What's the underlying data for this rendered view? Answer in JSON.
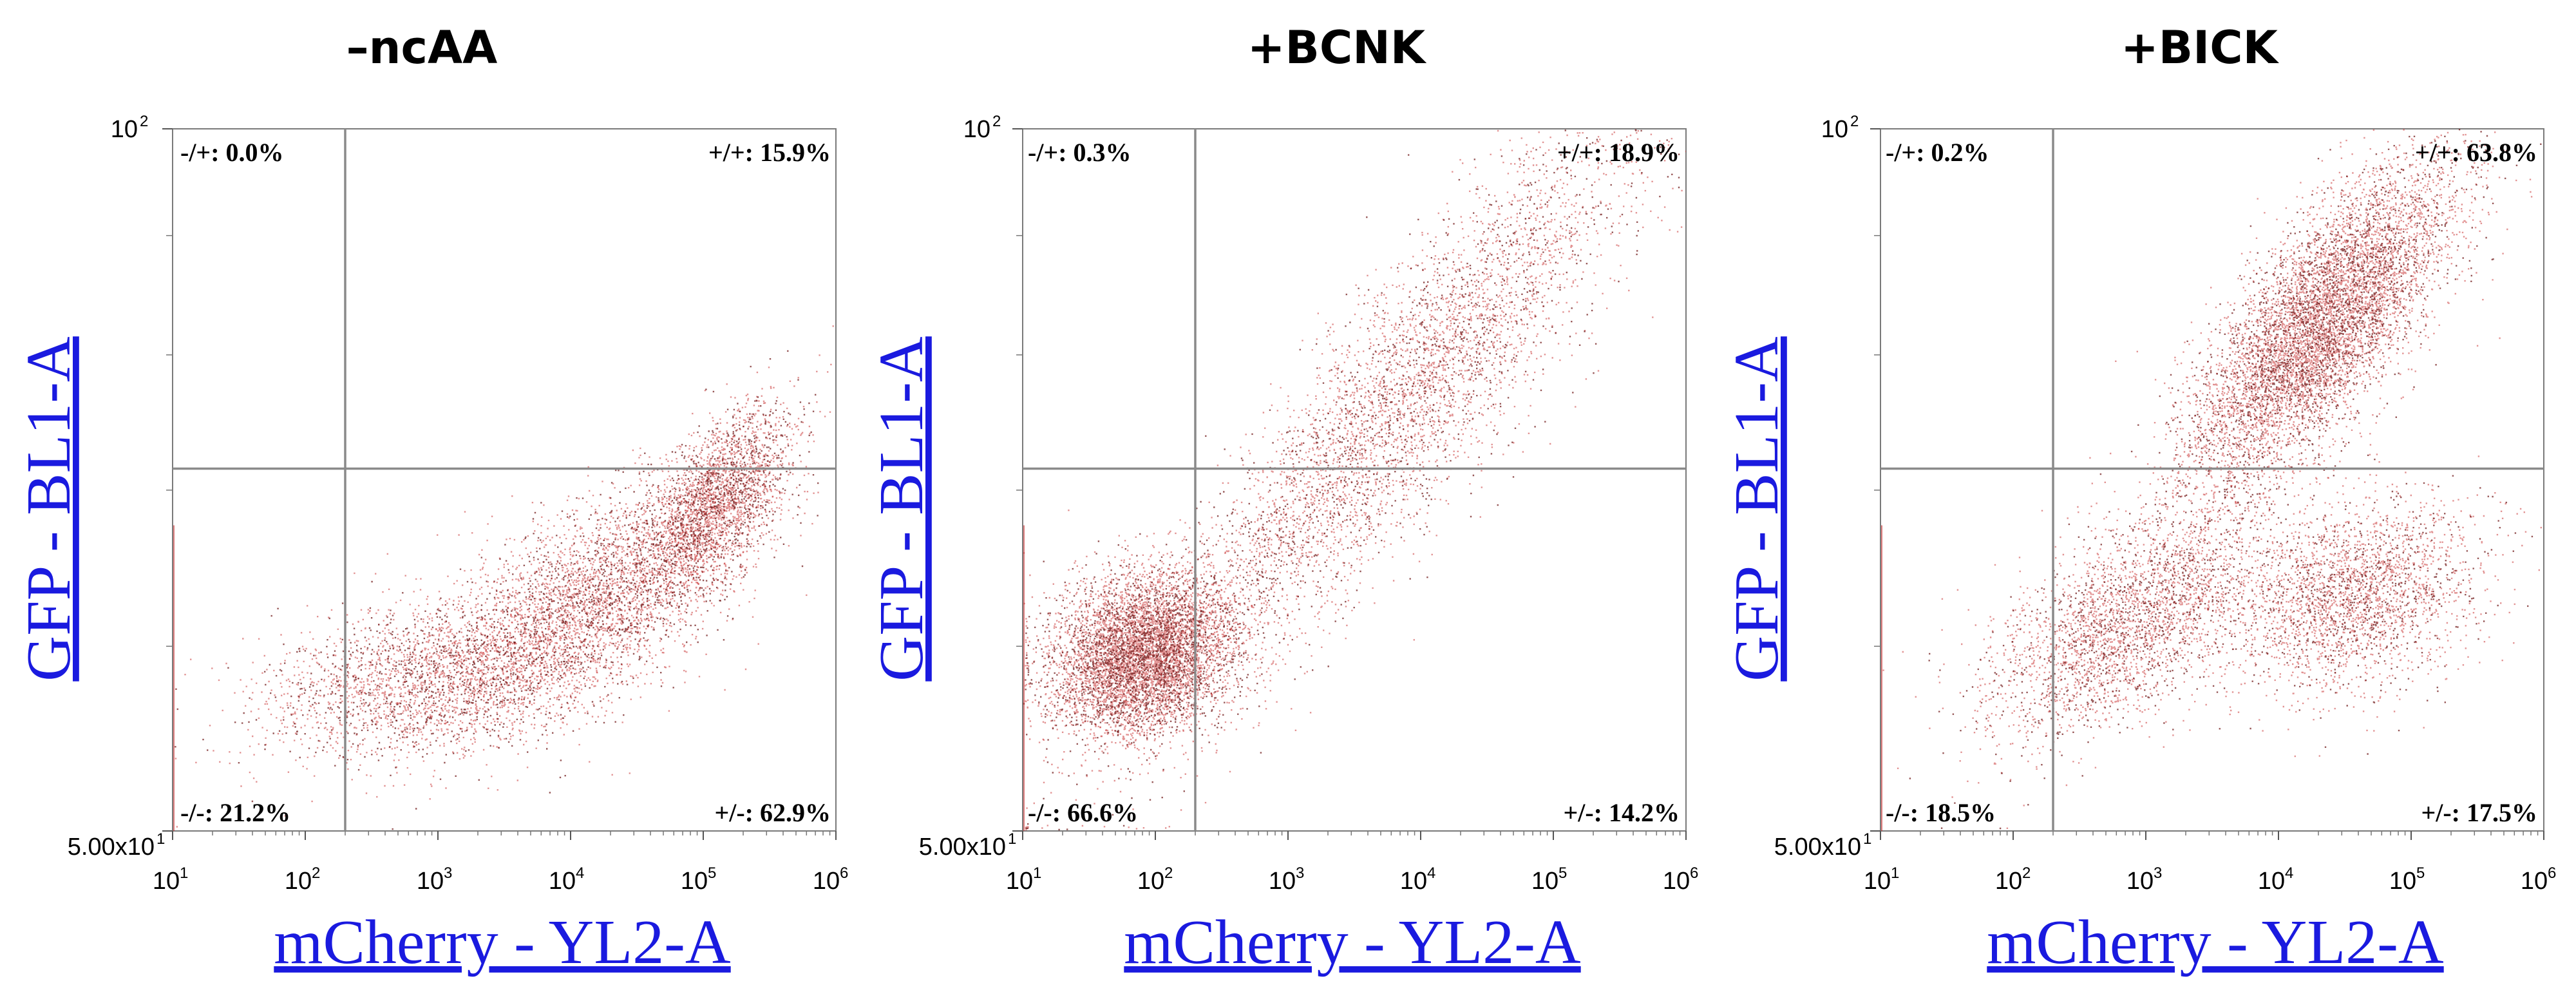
{
  "chart_data": [
    {
      "type": "scatter",
      "title": "–ncAA",
      "xlabel": "mCherry - YL2-A",
      "ylabel": "GFP - BL1-A",
      "xscale": "log",
      "yscale": "log",
      "xlim": [
        10,
        1000000
      ],
      "ylim": [
        50,
        100
      ],
      "x_ticks": [
        {
          "base": "10",
          "exp": "1"
        },
        {
          "base": "10",
          "exp": "2"
        },
        {
          "base": "10",
          "exp": "3"
        },
        {
          "base": "10",
          "exp": "4"
        },
        {
          "base": "10",
          "exp": "5"
        },
        {
          "base": "10",
          "exp": "6"
        }
      ],
      "y_ticks": [
        {
          "value": 100,
          "base": "10",
          "exp": "2"
        },
        {
          "value": 50,
          "base": "5.00x10",
          "exp": "1"
        }
      ],
      "gate": {
        "x": 200,
        "y": 71.5
      },
      "quadrants": [
        {
          "label": "-/+: 0.0%",
          "position": "top-left"
        },
        {
          "label": "+/+: 15.9%",
          "position": "top-right"
        },
        {
          "label": "-/-: 21.2%",
          "position": "bottom-left"
        },
        {
          "label": "+/-: 62.9%",
          "position": "bottom-right"
        }
      ],
      "point_color": "#c62828",
      "populations": [
        {
          "points": 2600,
          "logx_mean": 5.1,
          "logy_mean": 1.84,
          "sx": 0.28,
          "sy": 0.02,
          "rho": 0.6
        },
        {
          "points": 3600,
          "logx_mean": 4.2,
          "logy_mean": 1.8,
          "sx": 0.55,
          "sy": 0.025,
          "rho": 0.6
        },
        {
          "points": 2800,
          "logx_mean": 3.0,
          "logy_mean": 1.765,
          "sx": 0.65,
          "sy": 0.018,
          "rho": 0.3
        }
      ]
    },
    {
      "type": "scatter",
      "title": "+BCNK",
      "xlabel": "mCherry - YL2-A",
      "ylabel": "GFP - BL1-A",
      "xscale": "log",
      "yscale": "log",
      "xlim": [
        10,
        1000000
      ],
      "ylim": [
        50,
        100
      ],
      "x_ticks": [
        {
          "base": "10",
          "exp": "1"
        },
        {
          "base": "10",
          "exp": "2"
        },
        {
          "base": "10",
          "exp": "3"
        },
        {
          "base": "10",
          "exp": "4"
        },
        {
          "base": "10",
          "exp": "5"
        },
        {
          "base": "10",
          "exp": "6"
        }
      ],
      "y_ticks": [
        {
          "value": 100,
          "base": "10",
          "exp": "2"
        },
        {
          "value": 50,
          "base": "5.00x10",
          "exp": "1"
        }
      ],
      "gate": {
        "x": 200,
        "y": 71.5
      },
      "quadrants": [
        {
          "label": "-/+: 0.3%",
          "position": "top-left"
        },
        {
          "label": "+/+: 18.9%",
          "position": "top-right"
        },
        {
          "label": "-/-: 66.6%",
          "position": "bottom-left"
        },
        {
          "label": "+/-: 14.2%",
          "position": "bottom-right"
        }
      ],
      "point_color": "#c62828",
      "populations": [
        {
          "points": 6500,
          "logx_mean": 1.9,
          "logy_mean": 1.775,
          "sx": 0.33,
          "sy": 0.017,
          "rho": 0.2
        },
        {
          "points": 5000,
          "logx_mean": 3.8,
          "logy_mean": 1.88,
          "sx": 0.95,
          "sy": 0.065,
          "rho": 0.9
        }
      ]
    },
    {
      "type": "scatter",
      "title": "+BICK",
      "xlabel": "mCherry - YL2-A",
      "ylabel": "GFP - BL1-A",
      "xscale": "log",
      "yscale": "log",
      "xlim": [
        10,
        1000000
      ],
      "ylim": [
        50,
        100
      ],
      "x_ticks": [
        {
          "base": "10",
          "exp": "1"
        },
        {
          "base": "10",
          "exp": "2"
        },
        {
          "base": "10",
          "exp": "3"
        },
        {
          "base": "10",
          "exp": "4"
        },
        {
          "base": "10",
          "exp": "5"
        },
        {
          "base": "10",
          "exp": "6"
        }
      ],
      "y_ticks": [
        {
          "value": 100,
          "base": "10",
          "exp": "2"
        },
        {
          "value": 50,
          "base": "5.00x10",
          "exp": "1"
        }
      ],
      "gate": {
        "x": 200,
        "y": 71.5
      },
      "quadrants": [
        {
          "label": "-/+: 0.2%",
          "position": "top-left"
        },
        {
          "label": "+/+: 63.8%",
          "position": "top-right"
        },
        {
          "label": "-/-: 18.5%",
          "position": "bottom-left"
        },
        {
          "label": "+/-: 17.5%",
          "position": "bottom-right"
        }
      ],
      "point_color": "#c62828",
      "populations": [
        {
          "points": 7500,
          "logx_mean": 4.3,
          "logy_mean": 1.915,
          "sx": 0.5,
          "sy": 0.035,
          "rho": 0.75
        },
        {
          "points": 3200,
          "logx_mean": 2.9,
          "logy_mean": 1.79,
          "sx": 0.55,
          "sy": 0.025,
          "rho": 0.6
        },
        {
          "points": 2600,
          "logx_mean": 4.6,
          "logy_mean": 1.8,
          "sx": 0.45,
          "sy": 0.02,
          "rho": 0.3
        }
      ]
    }
  ]
}
